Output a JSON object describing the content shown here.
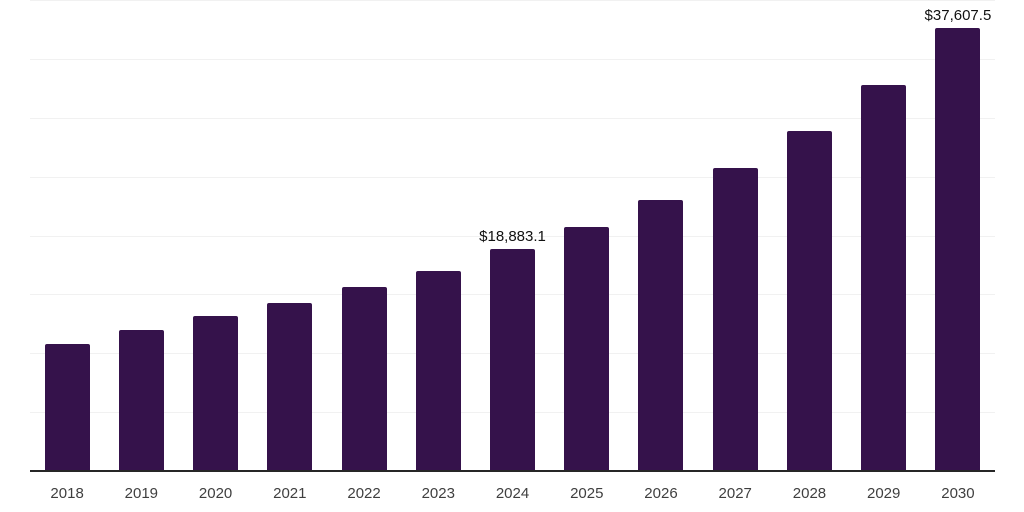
{
  "chart_data": {
    "type": "bar",
    "title": "",
    "xlabel": "",
    "ylabel": "",
    "categories": [
      "2018",
      "2019",
      "2020",
      "2021",
      "2022",
      "2023",
      "2024",
      "2025",
      "2026",
      "2027",
      "2028",
      "2029",
      "2030"
    ],
    "values": [
      10800,
      12000,
      13200,
      14300,
      15600,
      17000,
      18883.1,
      20750,
      23000,
      25750,
      28850,
      32750,
      37607.5
    ],
    "data_labels": [
      "",
      "",
      "",
      "",
      "",
      "",
      "$18,883.1",
      "",
      "",
      "",
      "",
      "",
      "$37,607.5"
    ],
    "ylim": [
      0,
      40000
    ],
    "gridline_interval": 5000,
    "grid": "horizontal",
    "y_axis_labels_visible": false,
    "legend_position": "none",
    "colors": {
      "bar": "#35124B",
      "axis_line": "#262626",
      "gridline": "#F1F1F1",
      "x_label": "#3F3F3F",
      "data_label": "#111111",
      "background": "#FFFFFF"
    }
  }
}
